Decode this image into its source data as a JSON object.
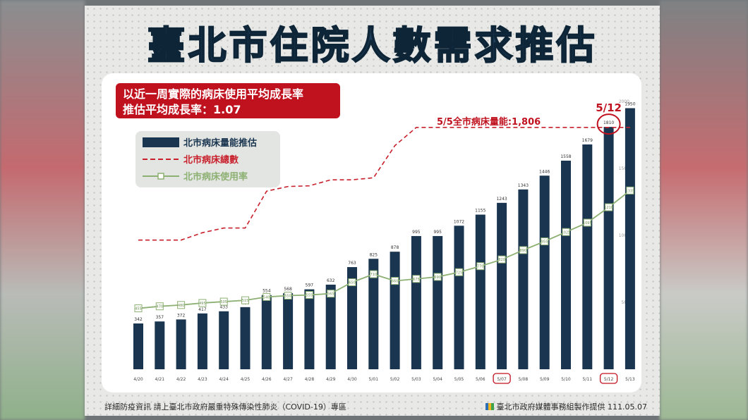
{
  "title": "臺北市住院人數需求推估",
  "note_box": {
    "line1": "以近一周實際的病床使用平均成長率",
    "line2": "推估平均成長率：1.07"
  },
  "legend": {
    "bars": "北市病床量能推估",
    "dashed": "北市病床總數",
    "line": "北市病床使用率"
  },
  "annotations": {
    "capacity": "5/5全市病床量能:1,806",
    "highlight_date": "5/12"
  },
  "footer": {
    "left": "詳細防疫資訊 請上臺北市政府嚴重特殊傳染性肺炎（COVID-19）專區",
    "right": "臺北市政府媒體事務組製作提供 111.05.07"
  },
  "colors": {
    "bar": "#1a3550",
    "dashed": "#c8202c",
    "rate_line": "#8db073",
    "note_box": "#c0111f",
    "title": "#1f3f5a"
  },
  "chart_data": {
    "type": "bar",
    "categories": [
      "4/20",
      "4/21",
      "4/22",
      "4/23",
      "4/24",
      "4/25",
      "4/26",
      "4/27",
      "4/28",
      "4/29",
      "4/30",
      "5/01",
      "5/02",
      "5/03",
      "5/04",
      "5/05",
      "5/06",
      "5/07",
      "5/08",
      "5/09",
      "5/10",
      "5/11",
      "5/12",
      "5/13"
    ],
    "highlighted_categories": [
      "5/07",
      "5/12"
    ],
    "series": [
      {
        "name": "北市病床量能推估",
        "type": "bar",
        "values": [
          342,
          357,
          372,
          417,
          433,
          464,
          554,
          568,
          597,
          632,
          763,
          825,
          878,
          995,
          995,
          1072,
          1155,
          1243,
          1343,
          1446,
          1558,
          1679,
          1810,
          1950
        ]
      },
      {
        "name": "北市病床總數",
        "type": "dashed-line",
        "values": [
          965,
          965,
          965,
          1020,
          1055,
          1055,
          1330,
          1365,
          1370,
          1415,
          1415,
          1430,
          1670,
          1806,
          1806,
          1806,
          1806,
          1806,
          1806,
          1806,
          1806,
          1806,
          1806,
          1806
        ]
      },
      {
        "name": "北市病床使用率",
        "type": "line",
        "values": [
          455,
          470,
          480,
          495,
          505,
          515,
          540,
          550,
          555,
          565,
          650,
          710,
          660,
          675,
          690,
          725,
          770,
          820,
          890,
          955,
          1025,
          1095,
          1210,
          1335
        ]
      }
    ],
    "y_ticks": [
      500,
      1000,
      1500,
      2000
    ],
    "ylim": [
      0,
      2000
    ],
    "grid": false,
    "legend_position": "top-left"
  }
}
